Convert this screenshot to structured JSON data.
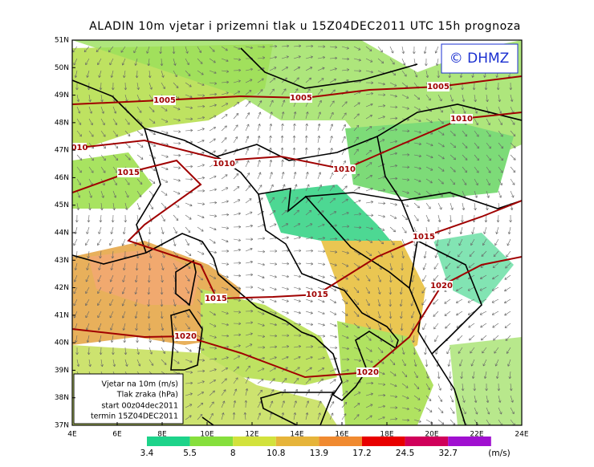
{
  "title": "ALADIN 10m vjetar i prizemni tlak u 15Z04DEC2011 UTC 15h prognoza",
  "watermark": "© DHMZ",
  "latitude_labels": [
    "37N",
    "38N",
    "39N",
    "40N",
    "41N",
    "42N",
    "43N",
    "44N",
    "45N",
    "46N",
    "47N",
    "48N",
    "49N",
    "50N",
    "51N"
  ],
  "longitude_labels": [
    "4E",
    "6E",
    "8E",
    "10E",
    "12E",
    "14E",
    "16E",
    "18E",
    "20E",
    "22E",
    "24E"
  ],
  "isobar_labels": [
    "1005",
    "1005",
    "1005",
    "1010",
    "010",
    "1010",
    "1010",
    "1015",
    "1015",
    "1015",
    "1015",
    "1020",
    "1020",
    "1020"
  ],
  "legend": [
    "Vjetar na 10m (m/s)",
    "Tlak zraka (hPa)",
    "start 00z04dec2011",
    "termin 15Z04DEC2011"
  ],
  "colorbar": {
    "labels": [
      "3.4",
      "5.5",
      "8",
      "10.8",
      "13.9",
      "17.2",
      "24.5",
      "32.7"
    ],
    "colors": [
      "#1dd38a",
      "#86df3c",
      "#d2e23c",
      "#e6b43a",
      "#f08a30",
      "#e80000",
      "#d0005a",
      "#a010d0"
    ],
    "unit": "(m/s)"
  }
}
